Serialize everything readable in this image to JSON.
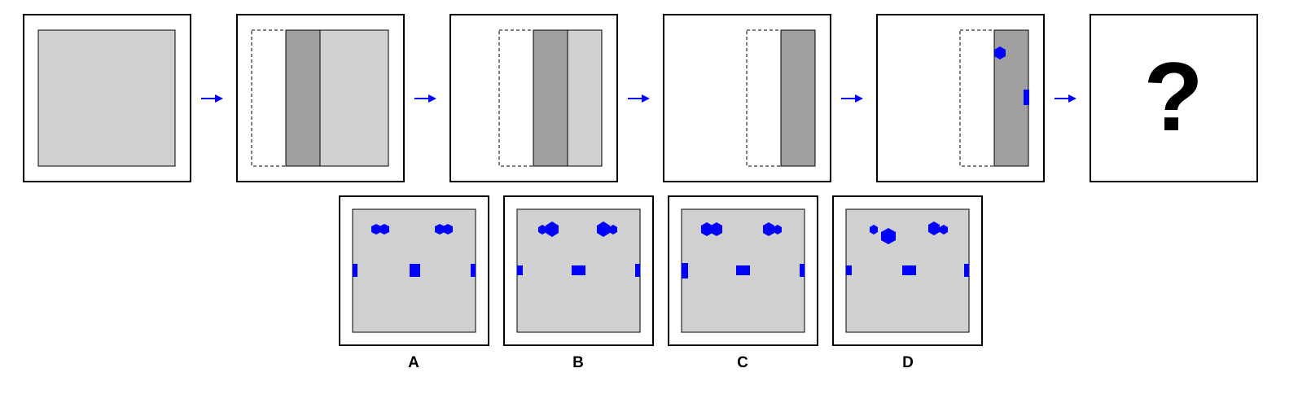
{
  "colors": {
    "light_gray": "#d0d0d0",
    "dark_gray": "#a0a0a0",
    "blue": "#0000ff",
    "border": "#000000"
  },
  "sequence": {
    "arrow_icon": "right-arrow-icon",
    "question_mark": "?"
  },
  "options": [
    {
      "label": "A"
    },
    {
      "label": "B"
    },
    {
      "label": "C"
    },
    {
      "label": "D"
    }
  ]
}
